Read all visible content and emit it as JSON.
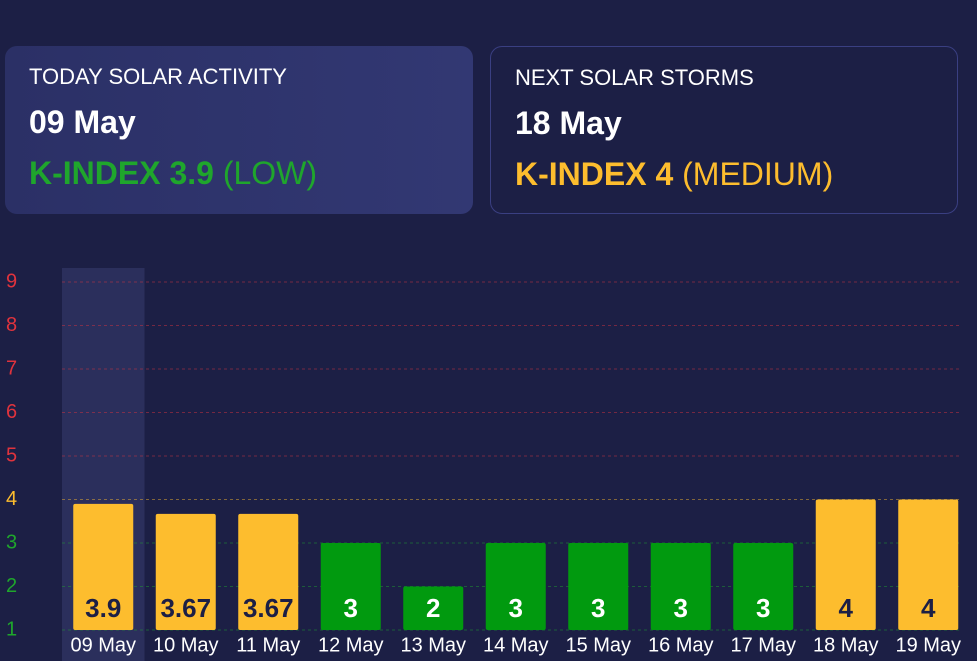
{
  "cards": [
    {
      "heading": "TODAY SOLAR ACTIVITY",
      "date": "09 May",
      "index_label": "K-INDEX 3.9",
      "level": "(LOW)"
    },
    {
      "heading": "NEXT SOLAR STORMS",
      "date": "18 May",
      "index_label": "K-INDEX 4",
      "level": "(MEDIUM)"
    }
  ],
  "chart_data": {
    "type": "bar",
    "categories": [
      "09 May",
      "10 May",
      "11 May",
      "12 May",
      "13 May",
      "14 May",
      "15 May",
      "16 May",
      "17 May",
      "18 May",
      "19 May"
    ],
    "values": [
      3.9,
      3.67,
      3.67,
      3,
      2,
      3,
      3,
      3,
      3,
      4,
      4
    ],
    "colors": [
      "#fdbd2e",
      "#fdbd2e",
      "#fdbd2e",
      "#019a0f",
      "#019a0f",
      "#019a0f",
      "#019a0f",
      "#019a0f",
      "#019a0f",
      "#fdbd2e",
      "#fdbd2e"
    ],
    "ylim": [
      1,
      9
    ],
    "yticks": [
      1,
      2,
      3,
      4,
      5,
      6,
      7,
      8,
      9
    ],
    "ytick_colors": [
      "#1fa62c",
      "#1fa62c",
      "#1fa62c",
      "#fdbd2e",
      "#e0333d",
      "#e0333d",
      "#e0333d",
      "#e0333d",
      "#e0333d"
    ],
    "grid": true,
    "highlight_index": 0
  }
}
